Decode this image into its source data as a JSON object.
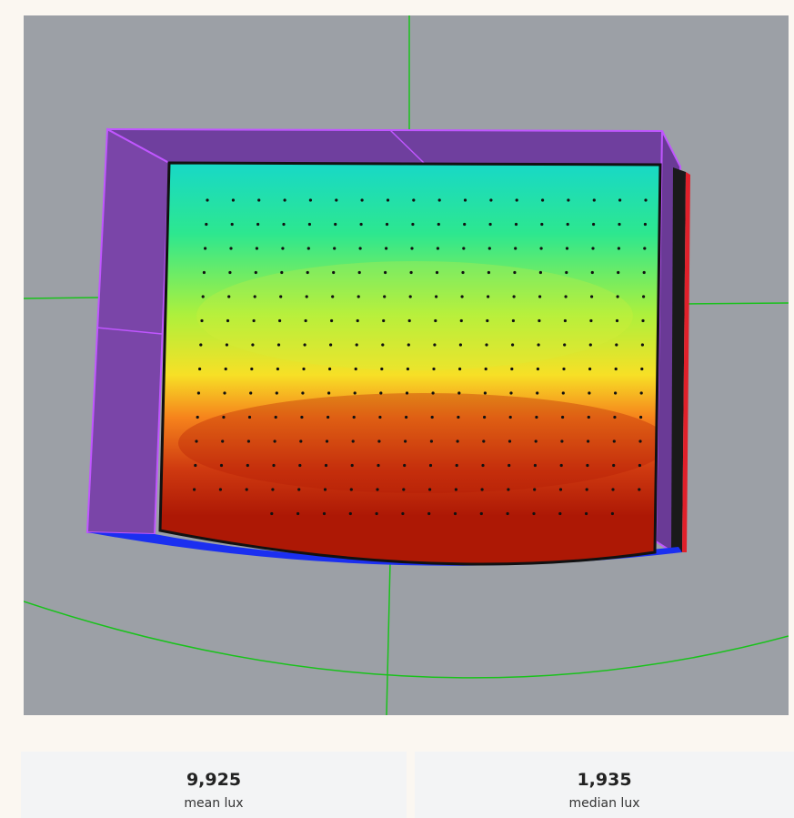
{
  "stats": {
    "mean": {
      "value": "9,925",
      "label": "mean lux"
    },
    "median": {
      "value": "1,935",
      "label": "median lux"
    }
  },
  "viewport": {
    "colors": {
      "background": "#9ca0a6",
      "axis": "#19c21b",
      "wall_fill": "#7a45a8",
      "wall_edge": "#c056ff",
      "floor_edge": "#1b2ff0",
      "side_accent": "#e0202a",
      "sensor_point": "#111111"
    },
    "heatmap_gradient": [
      "#17d8c9",
      "#2de78f",
      "#aef03c",
      "#f7e026",
      "#f6831c",
      "#cf3a10",
      "#ad1805"
    ]
  }
}
